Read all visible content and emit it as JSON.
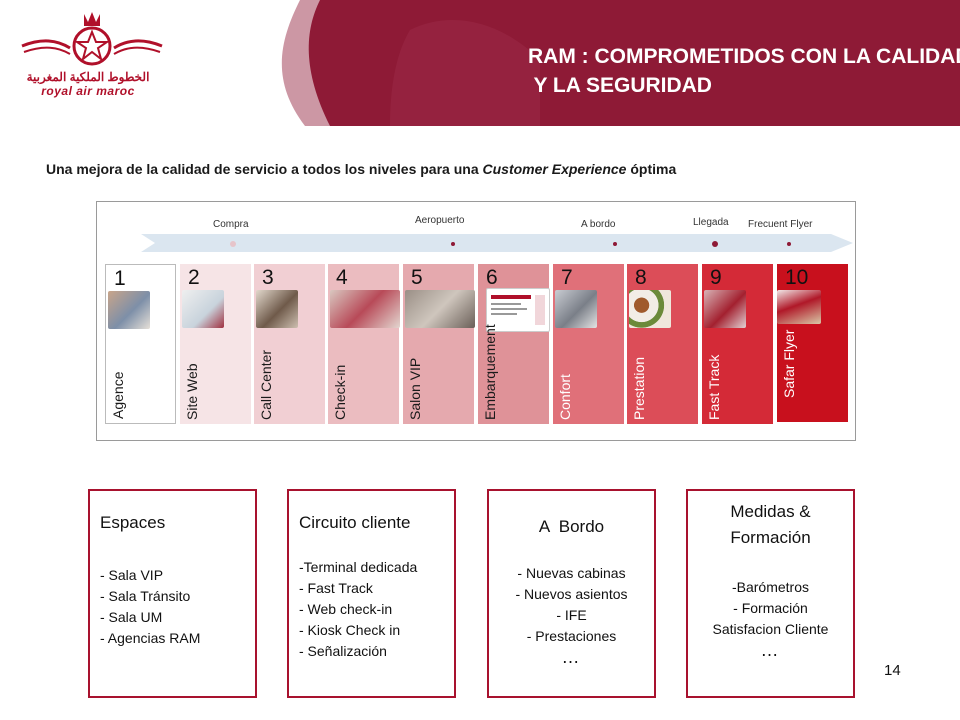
{
  "header": {
    "title": "RAM : COMPROMETIDOS CON LA CALIDAD\n Y LA SEGURIDAD",
    "logo_arabic": "الخطوط الملكية المغربية",
    "logo_latin": "royal air maroc"
  },
  "subtitle": {
    "before": "Una mejora de la calidad de servicio a todos los niveles para una ",
    "italic": "Customer Experience",
    "after": " óptima"
  },
  "journey": {
    "stages": [
      "Compra",
      "Aeropuerto",
      "A bordo",
      "Llegada",
      "Frecuent Flyer"
    ],
    "cards": [
      {
        "num": "1",
        "label": "Agence",
        "bg": "#ffffff",
        "fg": "#1a1a1a"
      },
      {
        "num": "2",
        "label": "Site Web",
        "bg": "#f6e4e6",
        "fg": "#1a1a1a"
      },
      {
        "num": "3",
        "label": "Call Center",
        "bg": "#f1cfd3",
        "fg": "#1a1a1a"
      },
      {
        "num": "4",
        "label": "Check-in",
        "bg": "#ebbcc0",
        "fg": "#1a1a1a"
      },
      {
        "num": "5",
        "label": "Salon VIP",
        "bg": "#e5a9ae",
        "fg": "#1a1a1a"
      },
      {
        "num": "6",
        "label": "Embarquement",
        "bg": "#df9298",
        "fg": "#1a1a1a"
      },
      {
        "num": "7",
        "label": "Confort",
        "bg": "#e07079",
        "fg": "#ffffff"
      },
      {
        "num": "8",
        "label": "Prestation",
        "bg": "#dc4d58",
        "fg": "#ffffff"
      },
      {
        "num": "9",
        "label": "Fast Track",
        "bg": "#d42a37",
        "fg": "#ffffff"
      },
      {
        "num": "10",
        "label": "Safar Flyer",
        "bg": "#c8101d",
        "fg": "#ffffff"
      }
    ]
  },
  "boxes": [
    {
      "title": "Espaces",
      "lines": [
        "- Sala VIP",
        "- Sala Tránsito",
        "- Sala UM",
        "- Agencias RAM"
      ],
      "ellipsis": ""
    },
    {
      "title": "Circuito cliente",
      "lines": [
        "-Terminal dedicada",
        "- Fast Track",
        "- Web check-in",
        "- Kiosk Check in",
        "- Señalización"
      ],
      "ellipsis": ""
    },
    {
      "title": "A  Bordo",
      "lines": [
        "- Nuevas cabinas",
        "- Nuevos asientos",
        "- IFE",
        "- Prestaciones"
      ],
      "ellipsis": "…"
    },
    {
      "title": "Medidas & Formación",
      "lines": [
        "-Barómetros",
        "- Formación",
        "Satisfacion Cliente"
      ],
      "ellipsis": "…"
    }
  ],
  "page_number": "14",
  "colors": {
    "brand": "#8e1a36",
    "accent": "#a8122e"
  }
}
